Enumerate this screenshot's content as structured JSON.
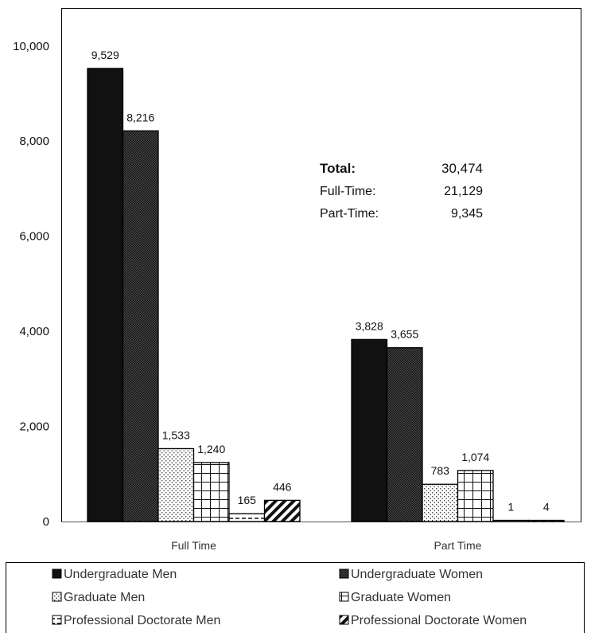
{
  "chart_data": {
    "type": "bar",
    "categories": [
      "Full Time",
      "Part Time"
    ],
    "series": [
      {
        "name": "Undergraduate Men",
        "values": [
          9529,
          3828
        ],
        "pattern": "solid"
      },
      {
        "name": "Undergraduate Women",
        "values": [
          8216,
          3655
        ],
        "pattern": "checker"
      },
      {
        "name": "Graduate Men",
        "values": [
          1533,
          783
        ],
        "pattern": "dots"
      },
      {
        "name": "Graduate Women",
        "values": [
          1240,
          1074
        ],
        "pattern": "grid"
      },
      {
        "name": "Professional Doctorate Men",
        "values": [
          165,
          1
        ],
        "pattern": "dashes"
      },
      {
        "name": "Professional Doctorate Women",
        "values": [
          446,
          4
        ],
        "pattern": "diagonal"
      }
    ],
    "data_labels": [
      [
        "9,529",
        "8,216",
        "1,533",
        "1,240",
        "165",
        "446"
      ],
      [
        "3,828",
        "3,655",
        "783",
        "1,074",
        "1",
        "4"
      ]
    ],
    "ylim": [
      0,
      10000
    ],
    "yticks": [
      0,
      2000,
      4000,
      6000,
      8000,
      10000
    ],
    "ytick_labels": [
      "0",
      "2,000",
      "4,000",
      "6,000",
      "8,000",
      "10,000"
    ],
    "legend_position": "bottom",
    "grid": false,
    "title": "",
    "xlabel": "",
    "ylabel": ""
  },
  "summary": {
    "total_label": "Total:",
    "total_value": "30,474",
    "full_time_label": "Full-Time:",
    "full_time_value": "21,129",
    "part_time_label": "Part-Time:",
    "part_time_value": "9,345"
  },
  "colors": {
    "bar_fill": "#1a1a1a",
    "frame": "#000000"
  }
}
